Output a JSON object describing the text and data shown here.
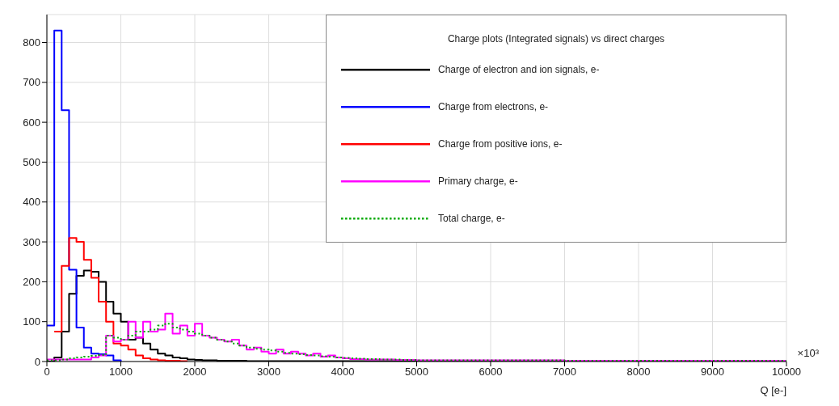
{
  "chart_data": {
    "type": "step",
    "xlabel": "Q [e-]",
    "legend_title": "Charge plots (Integrated signals) vs direct charges",
    "annotations": [
      "×10³"
    ],
    "x": [
      0,
      100,
      200,
      300,
      400,
      500,
      600,
      700,
      800,
      900,
      1000,
      1100,
      1200,
      1300,
      1400,
      1500,
      1600,
      1700,
      1800,
      1900,
      2000,
      2100,
      2200,
      2300,
      2400,
      2500,
      2600,
      2700,
      2800,
      2900,
      3000,
      3100,
      3200,
      3300,
      3400,
      3500,
      3600,
      3700,
      3800,
      3900,
      4000,
      4100,
      4200,
      4300,
      4400,
      4500,
      4600,
      4700,
      4800,
      4900,
      5000,
      6000,
      7000,
      8000,
      9000,
      10000
    ],
    "series": [
      {
        "name": "Charge of electron and ion signals, e-",
        "color": "#000000",
        "values": [
          0,
          10,
          75,
          170,
          215,
          228,
          225,
          200,
          150,
          120,
          100,
          55,
          60,
          45,
          30,
          20,
          15,
          10,
          8,
          5,
          4,
          3,
          3,
          2,
          2,
          2,
          2,
          1,
          1,
          1,
          1,
          1,
          1,
          1,
          1,
          1,
          1,
          1,
          1,
          1,
          1,
          1,
          1,
          1,
          1,
          1,
          1,
          1,
          1,
          1,
          1,
          1,
          1,
          1,
          1,
          1
        ]
      },
      {
        "name": "Charge from electrons, e-",
        "color": "#0000ff",
        "values": [
          90,
          830,
          630,
          230,
          85,
          35,
          20,
          18,
          15,
          3,
          0,
          null,
          null,
          null,
          null,
          null,
          null,
          null,
          null,
          null,
          null,
          null,
          null,
          null,
          null,
          null,
          null,
          null,
          null,
          null,
          null,
          null,
          null,
          null,
          null,
          null,
          null,
          null,
          null,
          null,
          null,
          null,
          null,
          null,
          null,
          null,
          null,
          null,
          null,
          null,
          null,
          null,
          null,
          null,
          null,
          null
        ]
      },
      {
        "name": "Charge from positive ions, e-",
        "color": "#ff0000",
        "values": [
          null,
          75,
          240,
          310,
          300,
          255,
          210,
          150,
          100,
          45,
          40,
          30,
          15,
          8,
          5,
          3,
          2,
          2,
          1,
          1,
          null,
          null,
          null,
          null,
          null,
          null,
          null,
          null,
          null,
          null,
          null,
          null,
          null,
          null,
          null,
          null,
          null,
          null,
          null,
          null,
          null,
          null,
          null,
          null,
          null,
          null,
          null,
          null,
          null,
          null,
          null,
          null,
          null,
          null,
          null,
          null
        ]
      },
      {
        "name": "Primary charge, e-",
        "color": "#ff00ff",
        "values": [
          5,
          5,
          5,
          5,
          5,
          5,
          10,
          15,
          65,
          50,
          55,
          100,
          60,
          100,
          75,
          80,
          120,
          70,
          90,
          65,
          95,
          65,
          60,
          55,
          50,
          55,
          40,
          30,
          35,
          25,
          20,
          30,
          20,
          25,
          20,
          15,
          20,
          12,
          15,
          10,
          8,
          6,
          6,
          5,
          5,
          5,
          5,
          4,
          4,
          4,
          3,
          3,
          2,
          2,
          2,
          2
        ]
      },
      {
        "name": "Total charge, e-",
        "color": "#00aa00",
        "line_style": "dotted",
        "values": [
          3,
          3,
          5,
          8,
          10,
          12,
          14,
          16,
          65,
          60,
          55,
          65,
          75,
          75,
          80,
          90,
          95,
          85,
          80,
          75,
          70,
          65,
          60,
          55,
          50,
          45,
          40,
          35,
          32,
          30,
          28,
          25,
          22,
          20,
          18,
          16,
          15,
          13,
          12,
          10,
          9,
          8,
          7,
          6,
          6,
          5,
          5,
          5,
          4,
          4,
          3,
          3,
          2,
          2,
          2,
          2
        ]
      }
    ],
    "xlim": [
      0,
      10000
    ],
    "xticks": [
      0,
      1000,
      2000,
      3000,
      4000,
      5000,
      6000,
      7000,
      8000,
      9000,
      10000
    ],
    "ylim": [
      0,
      870
    ],
    "yticks": [
      0,
      100,
      200,
      300,
      400,
      500,
      600,
      700,
      800
    ],
    "grid": true,
    "legend": "top right"
  }
}
